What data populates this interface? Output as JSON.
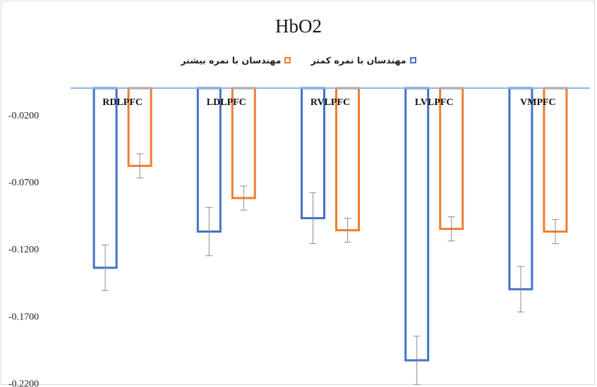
{
  "chart_data": {
    "type": "bar",
    "title": "HbO2",
    "categories": [
      "RDLPFC",
      "LDLPFC",
      "RVLPFC",
      "LVLPFC",
      "VMPFC"
    ],
    "series": [
      {
        "name": "مهندسان با نمره کمتر",
        "color": "#4472c4",
        "values": [
          -0.134,
          -0.107,
          -0.097,
          -0.203,
          -0.15
        ],
        "error": [
          0.017,
          0.018,
          0.019,
          0.018,
          0.017
        ]
      },
      {
        "name": "مهندسان با نمره بیشتر",
        "color": "#ed7d31",
        "values": [
          -0.058,
          -0.082,
          -0.106,
          -0.105,
          -0.107
        ],
        "error": [
          0.009,
          0.009,
          0.009,
          0.009,
          0.009
        ]
      }
    ],
    "yticks": [
      "-0.0200",
      "-0.0700",
      "-0.1200",
      "-0.1700",
      "-0.2200"
    ],
    "yticks_values": [
      -0.02,
      -0.07,
      -0.12,
      -0.17,
      -0.22
    ],
    "ylim": [
      -0.223,
      0
    ],
    "xlabel": "",
    "ylabel": "",
    "legend_position": "top",
    "grid": false,
    "axis_color": "#8eb4e3"
  }
}
